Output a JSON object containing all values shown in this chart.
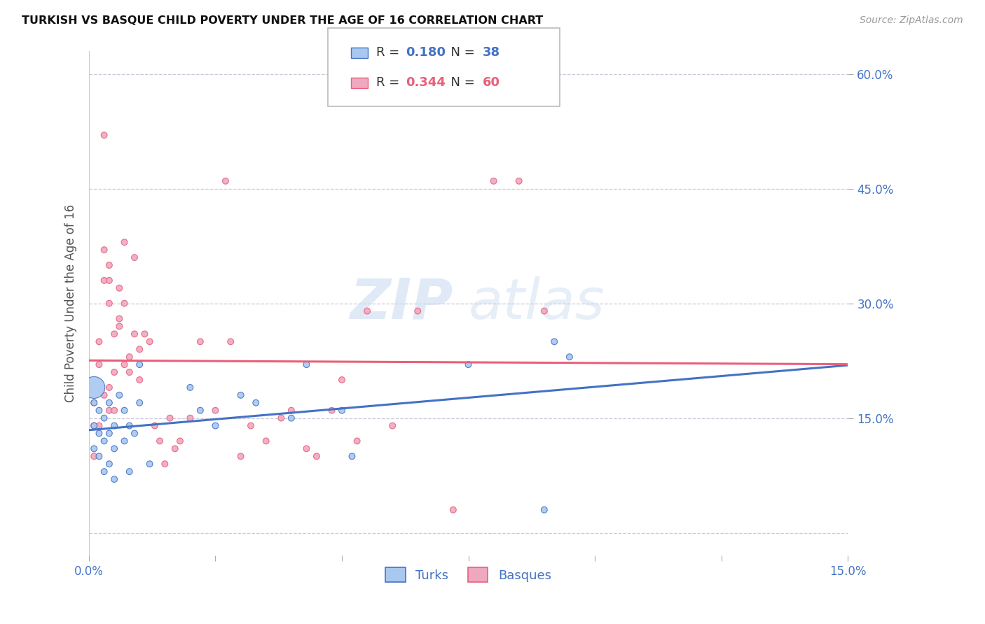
{
  "title": "TURKISH VS BASQUE CHILD POVERTY UNDER THE AGE OF 16 CORRELATION CHART",
  "source": "Source: ZipAtlas.com",
  "ylabel": "Child Poverty Under the Age of 16",
  "xlim": [
    0.0,
    0.15
  ],
  "ylim": [
    -0.03,
    0.63
  ],
  "xticks": [
    0.0,
    0.025,
    0.05,
    0.075,
    0.1,
    0.125,
    0.15
  ],
  "xticklabels_show": [
    "0.0%",
    "",
    "",
    "",
    "",
    "",
    "15.0%"
  ],
  "yticks_right": [
    0.15,
    0.3,
    0.45,
    0.6
  ],
  "yticklabels_right": [
    "15.0%",
    "30.0%",
    "45.0%",
    "60.0%"
  ],
  "yticks_grid": [
    0.0,
    0.15,
    0.3,
    0.45,
    0.6
  ],
  "turks_color": "#a8c8f0",
  "basques_color": "#f0a8c0",
  "turks_line_color": "#4472c4",
  "basques_line_color": "#e8607a",
  "turks_R": 0.18,
  "turks_N": 38,
  "basques_R": 0.344,
  "basques_N": 60,
  "background_color": "#ffffff",
  "grid_color": "#c8c8d8",
  "watermark_zip": "ZIP",
  "watermark_atlas": "atlas",
  "turks_x": [
    0.001,
    0.001,
    0.001,
    0.002,
    0.002,
    0.002,
    0.003,
    0.003,
    0.003,
    0.004,
    0.004,
    0.004,
    0.005,
    0.005,
    0.005,
    0.006,
    0.007,
    0.007,
    0.008,
    0.008,
    0.009,
    0.01,
    0.01,
    0.012,
    0.02,
    0.022,
    0.025,
    0.03,
    0.033,
    0.04,
    0.043,
    0.05,
    0.052,
    0.075,
    0.09,
    0.092,
    0.095,
    0.001
  ],
  "turks_y": [
    0.17,
    0.14,
    0.11,
    0.16,
    0.13,
    0.1,
    0.15,
    0.12,
    0.08,
    0.17,
    0.13,
    0.09,
    0.14,
    0.11,
    0.07,
    0.18,
    0.16,
    0.12,
    0.14,
    0.08,
    0.13,
    0.22,
    0.17,
    0.09,
    0.19,
    0.16,
    0.14,
    0.18,
    0.17,
    0.15,
    0.22,
    0.16,
    0.1,
    0.22,
    0.03,
    0.25,
    0.23,
    0.19
  ],
  "turks_size": [
    40,
    40,
    40,
    40,
    40,
    40,
    40,
    40,
    40,
    40,
    40,
    40,
    40,
    40,
    40,
    40,
    40,
    40,
    40,
    40,
    40,
    40,
    40,
    40,
    40,
    40,
    40,
    40,
    40,
    40,
    40,
    40,
    40,
    40,
    40,
    40,
    40,
    500
  ],
  "basques_x": [
    0.001,
    0.001,
    0.001,
    0.002,
    0.002,
    0.002,
    0.003,
    0.003,
    0.003,
    0.004,
    0.004,
    0.004,
    0.005,
    0.005,
    0.006,
    0.006,
    0.007,
    0.007,
    0.008,
    0.008,
    0.009,
    0.009,
    0.01,
    0.01,
    0.011,
    0.012,
    0.013,
    0.014,
    0.015,
    0.016,
    0.017,
    0.018,
    0.02,
    0.022,
    0.025,
    0.027,
    0.028,
    0.03,
    0.032,
    0.035,
    0.038,
    0.04,
    0.043,
    0.045,
    0.048,
    0.05,
    0.053,
    0.055,
    0.06,
    0.065,
    0.072,
    0.08,
    0.085,
    0.09,
    0.003,
    0.004,
    0.006,
    0.007,
    0.004,
    0.005
  ],
  "basques_y": [
    0.17,
    0.14,
    0.1,
    0.25,
    0.22,
    0.14,
    0.37,
    0.33,
    0.18,
    0.35,
    0.3,
    0.19,
    0.26,
    0.21,
    0.32,
    0.27,
    0.38,
    0.3,
    0.23,
    0.21,
    0.36,
    0.26,
    0.24,
    0.2,
    0.26,
    0.25,
    0.14,
    0.12,
    0.09,
    0.15,
    0.11,
    0.12,
    0.15,
    0.25,
    0.16,
    0.46,
    0.25,
    0.1,
    0.14,
    0.12,
    0.15,
    0.16,
    0.11,
    0.1,
    0.16,
    0.2,
    0.12,
    0.29,
    0.14,
    0.29,
    0.03,
    0.46,
    0.46,
    0.29,
    0.52,
    0.33,
    0.28,
    0.22,
    0.16,
    0.16
  ],
  "basques_size": [
    40,
    40,
    40,
    40,
    40,
    40,
    40,
    40,
    40,
    40,
    40,
    40,
    40,
    40,
    40,
    40,
    40,
    40,
    40,
    40,
    40,
    40,
    40,
    40,
    40,
    40,
    40,
    40,
    40,
    40,
    40,
    40,
    40,
    40,
    40,
    40,
    40,
    40,
    40,
    40,
    40,
    40,
    40,
    40,
    40,
    40,
    40,
    40,
    40,
    40,
    40,
    40,
    40,
    40,
    40,
    40,
    40,
    40,
    40,
    40
  ],
  "legend_turks_R": "0.180",
  "legend_turks_N": "38",
  "legend_basques_R": "0.344",
  "legend_basques_N": "60"
}
